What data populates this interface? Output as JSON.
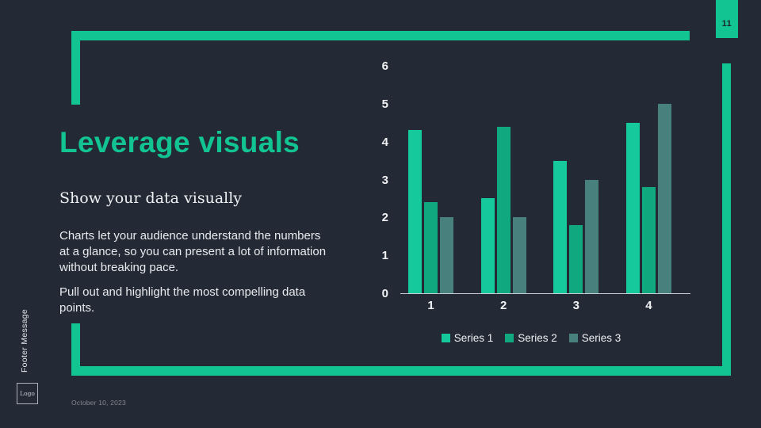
{
  "slide": {
    "page_number": "11",
    "title": "Leverage visuals",
    "subtitle": "Show your data visually",
    "body_paragraphs": {
      "p1": "Charts let your audience understand the numbers at a glance, so you can present a lot of information without breaking pace.",
      "p2": "Pull out and highlight the most compelling data points."
    },
    "footer_message": "Footer Message",
    "logo_label": "Logo",
    "date": "October 10, 2023"
  },
  "colors": {
    "background": "#242a35",
    "accent_green": "#12c492",
    "axis_line": "#c9ced6",
    "badge_text": "#1d2530"
  },
  "chart_data": {
    "type": "bar",
    "title": "",
    "xlabel": "",
    "ylabel": "",
    "categories": [
      "1",
      "2",
      "3",
      "4"
    ],
    "series": [
      {
        "name": "Series 1",
        "color": "#16c99c",
        "values": [
          4.3,
          2.5,
          3.5,
          4.5
        ]
      },
      {
        "name": "Series 2",
        "color": "#0fa87f",
        "values": [
          2.4,
          4.4,
          1.8,
          2.8
        ]
      },
      {
        "name": "Series 3",
        "color": "#47807c",
        "values": [
          2.0,
          2.0,
          3.0,
          5.0
        ]
      }
    ],
    "ylim": [
      0,
      6
    ],
    "yticks": [
      0,
      1,
      2,
      3,
      4,
      5,
      6
    ],
    "grid": false,
    "legend_position": "bottom"
  }
}
